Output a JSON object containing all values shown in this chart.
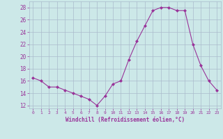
{
  "x": [
    0,
    1,
    2,
    3,
    4,
    5,
    6,
    7,
    8,
    9,
    10,
    11,
    12,
    13,
    14,
    15,
    16,
    17,
    18,
    19,
    20,
    21,
    22,
    23
  ],
  "y": [
    16.5,
    16.0,
    15.0,
    15.0,
    14.5,
    14.0,
    13.5,
    13.0,
    12.0,
    13.5,
    15.5,
    16.0,
    19.5,
    22.5,
    25.0,
    27.5,
    28.0,
    28.0,
    27.5,
    27.5,
    22.0,
    18.5,
    16.0,
    14.5
  ],
  "line_color": "#993399",
  "marker": "D",
  "marker_size": 2,
  "xlabel": "Windchill (Refroidissement éolien,°C)",
  "ylabel_ticks": [
    12,
    14,
    16,
    18,
    20,
    22,
    24,
    26,
    28
  ],
  "ylim": [
    11.5,
    29.0
  ],
  "xlim": [
    -0.5,
    23.5
  ],
  "bg_color": "#cce8e8",
  "grid_color": "#aabbcc",
  "tick_label_color": "#993399",
  "xlabel_color": "#993399"
}
